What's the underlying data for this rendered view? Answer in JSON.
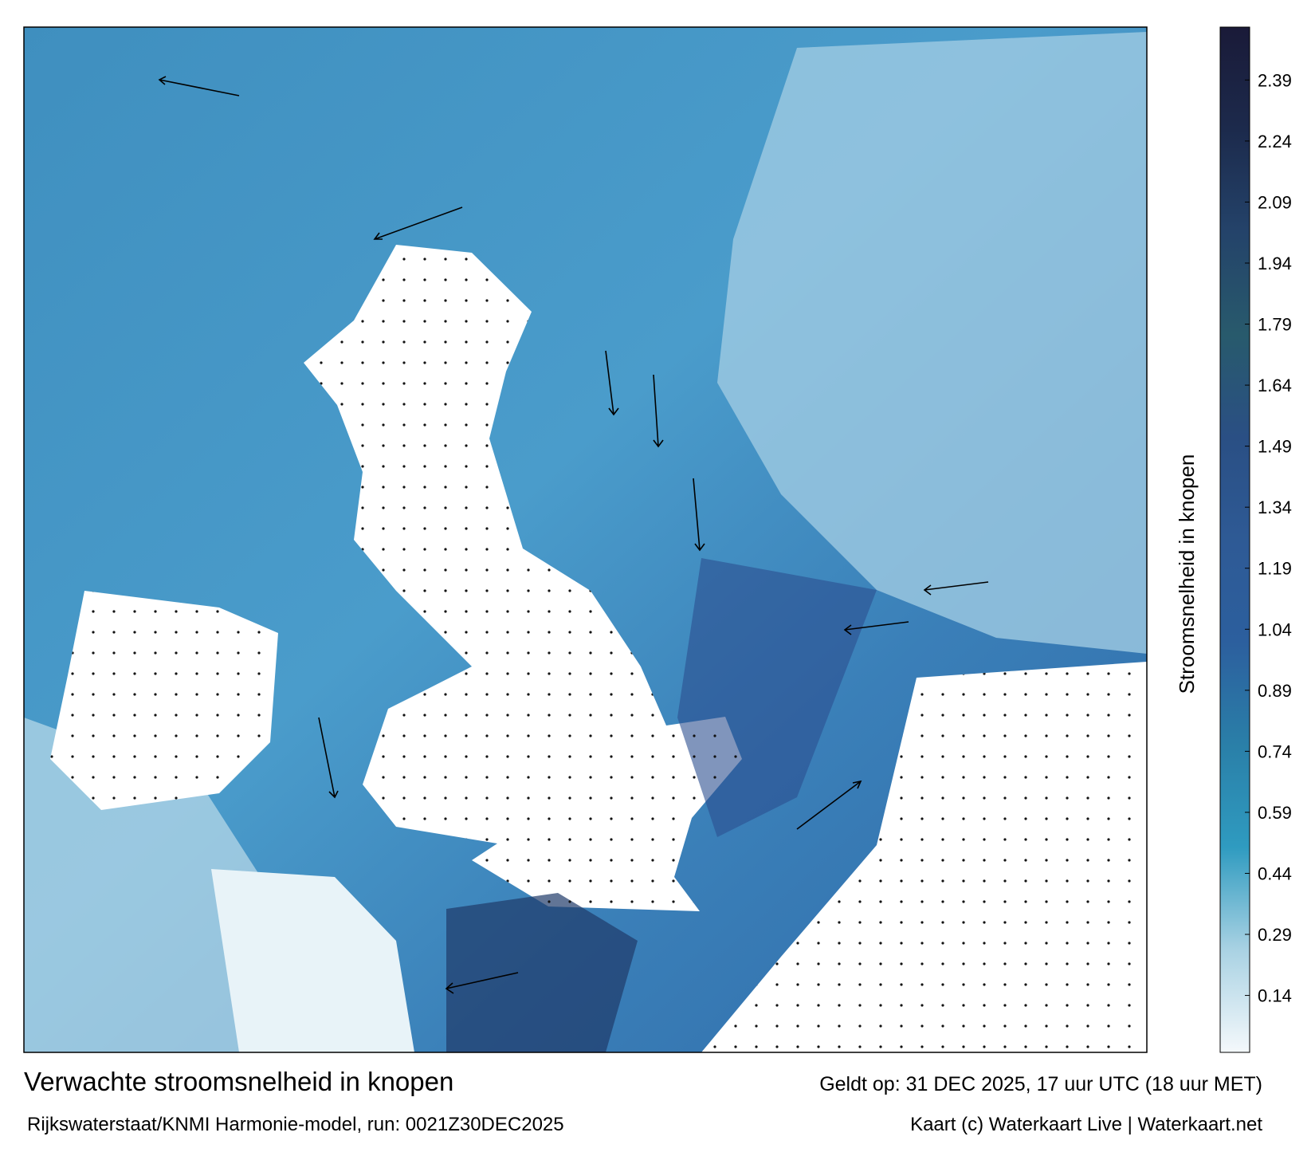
{
  "title": "Verwachte stroomsnelheid in knopen",
  "subtitle": "Rijkswaterstaat/KNMI Harmonie-model, run: 0021Z30DEC2025",
  "valid_time": "Geldt op: 31 DEC 2025, 17 uur UTC (18 uur MET)",
  "credit": "Kaart (c) Waterkaart Live | Waterkaart.net",
  "colorbar": {
    "label": "Stroomsnelheid in knopen",
    "vlim": [
      0,
      2.52
    ],
    "ticks": [
      0.14,
      0.29,
      0.44,
      0.59,
      0.74,
      0.89,
      1.04,
      1.19,
      1.34,
      1.49,
      1.64,
      1.79,
      1.94,
      2.09,
      2.24,
      2.39
    ],
    "colors": [
      "#f4f8fb",
      "#a9d2e3",
      "#2f9bc0",
      "#2a7fa8",
      "#2c5f9e",
      "#2e5a95",
      "#2a4f84",
      "#285a6c",
      "#24436a",
      "#1c2a4c",
      "#1a1a38"
    ]
  }
}
